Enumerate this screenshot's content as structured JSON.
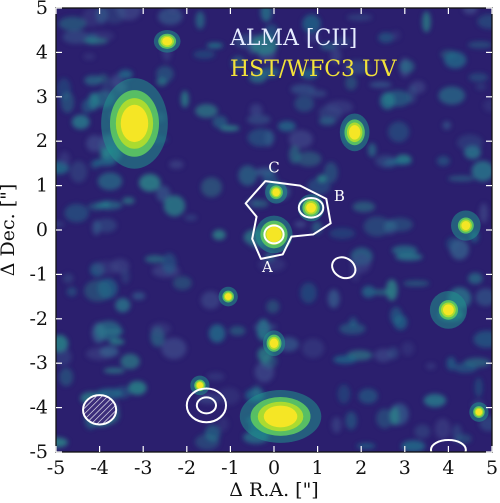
{
  "chart_data": {
    "type": "heatmap",
    "xlabel": "Δ R.A. [\"]",
    "ylabel": "Δ Dec. [\"]",
    "xlim": [
      -5,
      5
    ],
    "ylim": [
      -5,
      5
    ],
    "x_ticks": [
      "-5",
      "-4",
      "-3",
      "-2",
      "-1",
      "0",
      "1",
      "2",
      "3",
      "4",
      "5"
    ],
    "y_ticks": [
      "5",
      "4",
      "3",
      "2",
      "1",
      "0",
      "-1",
      "-2",
      "-3",
      "-4",
      "-5"
    ],
    "legend": [
      {
        "label": "ALMA [CII]",
        "color": "#e6ecff"
      },
      {
        "label": "HST/WFC3 UV",
        "color": "#f2e23a"
      }
    ],
    "annotations": [
      {
        "label": "C",
        "x": 0.0,
        "y": 1.3
      },
      {
        "label": "B",
        "x": 1.5,
        "y": 0.65
      },
      {
        "label": "A",
        "x": -0.15,
        "y": -0.95
      }
    ],
    "sources": [
      {
        "x": -3.2,
        "y": 2.4,
        "intensity": 1.0,
        "sx": 0.45,
        "sy": 0.6
      },
      {
        "x": 0.15,
        "y": -4.2,
        "intensity": 1.0,
        "sx": 0.55,
        "sy": 0.35
      },
      {
        "x": 0.0,
        "y": -0.1,
        "intensity": 1.0,
        "sx": 0.25,
        "sy": 0.25
      },
      {
        "x": -2.45,
        "y": 4.25,
        "intensity": 0.8,
        "sx": 0.18,
        "sy": 0.15
      },
      {
        "x": 1.85,
        "y": 2.2,
        "intensity": 0.85,
        "sx": 0.2,
        "sy": 0.25
      },
      {
        "x": 0.85,
        "y": 0.5,
        "intensity": 0.75,
        "sx": 0.18,
        "sy": 0.18
      },
      {
        "x": 0.05,
        "y": 0.85,
        "intensity": 0.6,
        "sx": 0.15,
        "sy": 0.15
      },
      {
        "x": 0.0,
        "y": -2.55,
        "intensity": 0.8,
        "sx": 0.15,
        "sy": 0.17
      },
      {
        "x": -1.05,
        "y": -1.5,
        "intensity": 0.6,
        "sx": 0.13,
        "sy": 0.13
      },
      {
        "x": -1.7,
        "y": -3.5,
        "intensity": 0.55,
        "sx": 0.13,
        "sy": 0.13
      },
      {
        "x": 4.7,
        "y": -4.1,
        "intensity": 0.6,
        "sx": 0.13,
        "sy": 0.13
      },
      {
        "x": 4.4,
        "y": 0.1,
        "intensity": 0.4,
        "sx": 0.2,
        "sy": 0.2
      },
      {
        "x": 4.0,
        "y": -1.8,
        "intensity": 0.35,
        "sx": 0.25,
        "sy": 0.25
      }
    ],
    "contours": [
      {
        "x": 0.0,
        "y": -0.1,
        "rx": 0.22,
        "ry": 0.2,
        "rot": 0
      },
      {
        "x": 0.85,
        "y": 0.5,
        "rx": 0.28,
        "ry": 0.22,
        "rot": 0
      },
      {
        "x": 1.6,
        "y": -0.85,
        "rx": 0.28,
        "ry": 0.22,
        "rot": 30
      },
      {
        "x": -1.55,
        "y": -3.95,
        "rx": 0.22,
        "ry": 0.18,
        "rot": 0
      },
      {
        "x": -1.55,
        "y": -3.95,
        "rx": 0.45,
        "ry": 0.38,
        "rot": 0
      },
      {
        "x": 4.0,
        "y": -4.95,
        "rx": 0.4,
        "ry": 0.22,
        "rot": 0
      }
    ],
    "outer_contour_points": [
      [
        -0.65,
        0.6
      ],
      [
        -0.2,
        1.1
      ],
      [
        0.6,
        1.0
      ],
      [
        1.2,
        0.7
      ],
      [
        1.3,
        0.15
      ],
      [
        0.9,
        -0.1
      ],
      [
        0.4,
        -0.15
      ],
      [
        0.2,
        -0.55
      ],
      [
        -0.3,
        -0.65
      ],
      [
        -0.5,
        -0.2
      ],
      [
        -0.4,
        0.3
      ]
    ],
    "beam": {
      "x": -4.0,
      "y": -4.05,
      "rx": 0.38,
      "ry": 0.33
    }
  }
}
